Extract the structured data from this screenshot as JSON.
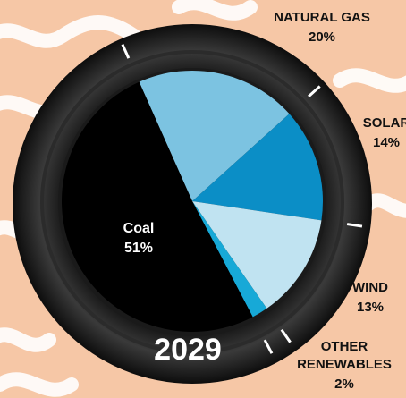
{
  "chart_data": {
    "type": "pie",
    "title": "2029",
    "categories": [
      "NATURAL GAS",
      "SOLAR",
      "WIND",
      "OTHER RENEWABLES",
      "Coal"
    ],
    "values": [
      20,
      14,
      13,
      2,
      51
    ],
    "value_labels": [
      "20%",
      "14%",
      "13%",
      "2%",
      "51%"
    ],
    "colors": [
      "#7cc3e1",
      "#0b8ec6",
      "#c0e3f1",
      "#17a9d7",
      "#000000"
    ]
  }
}
